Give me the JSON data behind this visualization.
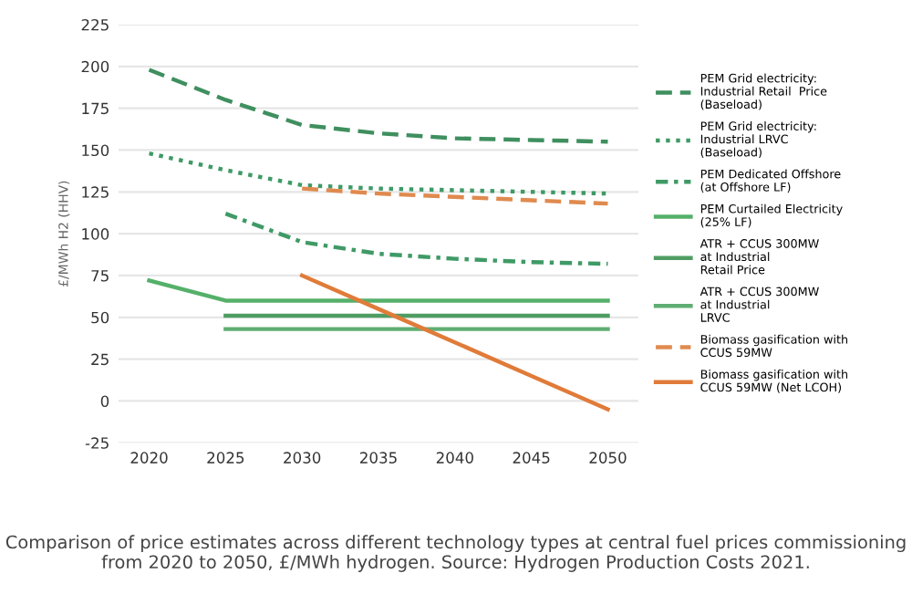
{
  "chart_data": {
    "type": "line",
    "ylabel": "£/MWh H2 (HHV)",
    "x": [
      2020,
      2025,
      2030,
      2035,
      2040,
      2045,
      2050
    ],
    "xlim": [
      2018,
      2052
    ],
    "xticks": [
      2020,
      2025,
      2030,
      2035,
      2040,
      2045,
      2050
    ],
    "ylim": [
      -25,
      225
    ],
    "yticks": [
      -25,
      0,
      25,
      50,
      75,
      100,
      125,
      150,
      175,
      200,
      225
    ],
    "grid": "y",
    "legend": "right",
    "series": [
      {
        "name": "PEM Grid electricity:\nIndustrial Retail  Price\n(Baseload)",
        "color": "#3f8f5f",
        "line_style": "dashed",
        "values": [
          198,
          180,
          165,
          160,
          157,
          156,
          155
        ]
      },
      {
        "name": "PEM Grid electricity:\nIndustrial LRVC\n(Baseload)",
        "color": "#3f9a66",
        "line_style": "dotted",
        "values": [
          148,
          138,
          129,
          127,
          126,
          125,
          124
        ]
      },
      {
        "name": "PEM Dedicated Offshore\n(at Offshore LF)",
        "color": "#3f9a66",
        "line_style": "dashdot",
        "values": [
          null,
          112,
          95,
          88,
          85,
          83,
          82
        ]
      },
      {
        "name": "PEM Curtailed Electricity\n(25% LF)",
        "color": "#55b06a",
        "line_style": "solid",
        "values": [
          72,
          60,
          60,
          60,
          60,
          60,
          60
        ]
      },
      {
        "name": "ATR + CCUS 300MW\nat Industrial\nRetail Price",
        "color": "#4f9d63",
        "line_style": "solid",
        "values": [
          null,
          51,
          51,
          51,
          51,
          51,
          51
        ]
      },
      {
        "name": "ATR + CCUS 300MW\nat Industrial\nLRVC",
        "color": "#5fae72",
        "line_style": "solid",
        "values": [
          null,
          43,
          43,
          43,
          43,
          43,
          43
        ]
      },
      {
        "name": "Biomass gasification with\nCCUS 59MW",
        "color": "#e08a4f",
        "line_style": "dashed",
        "values": [
          null,
          null,
          127,
          124,
          122,
          120,
          118
        ]
      },
      {
        "name": "Biomass gasification with\nCCUS 59MW (Net LCOH)",
        "color": "#e07b39",
        "line_style": "solid",
        "values": [
          null,
          null,
          75,
          55,
          35,
          15,
          -5
        ]
      }
    ],
    "annotations": [
      "Comparison of price estimates across different technology types at central fuel prices commissioning from 2020 to 2050, £/MWh hydrogen. Source: Hydrogen Production Costs 2021."
    ]
  }
}
